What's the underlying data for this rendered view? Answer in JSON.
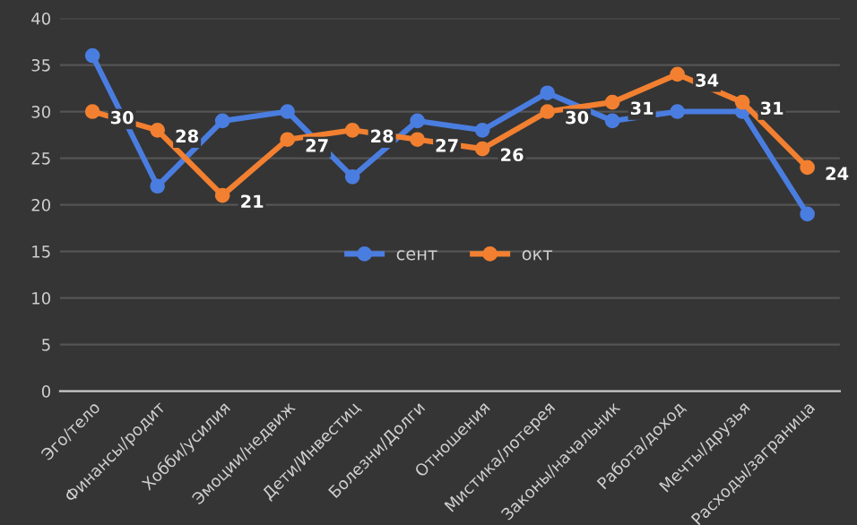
{
  "chart_data": {
    "type": "line",
    "categories": [
      "Эго/тело",
      "Финансы/родит",
      "Хобби/усилия",
      "Эмоции/недвиж",
      "Дети/Инвестиц",
      "Болезни/Долги",
      "Отношения",
      "Мистика/лотерея",
      "Законы/начальник",
      "Работа/доход",
      "Мечты/друзья",
      "Расходы/заграница"
    ],
    "series": [
      {
        "name": "сент",
        "color": "#4a7de0",
        "values": [
          36,
          22,
          29,
          30,
          23,
          29,
          28,
          32,
          29,
          30,
          30,
          19
        ]
      },
      {
        "name": "окт",
        "color": "#f28030",
        "values": [
          30,
          28,
          21,
          27,
          28,
          27,
          26,
          30,
          31,
          34,
          31,
          24
        ],
        "value_labels": [
          "30",
          "28",
          "21",
          "27",
          "28",
          "27",
          "26",
          "30",
          "31",
          "34",
          "31",
          "24"
        ]
      }
    ],
    "ylim": [
      0,
      40
    ],
    "yticks": [
      0,
      5,
      10,
      15,
      20,
      25,
      30,
      35,
      40
    ],
    "grid": "y",
    "legend": "bottom",
    "marker": "circle",
    "line_style": "solid"
  }
}
